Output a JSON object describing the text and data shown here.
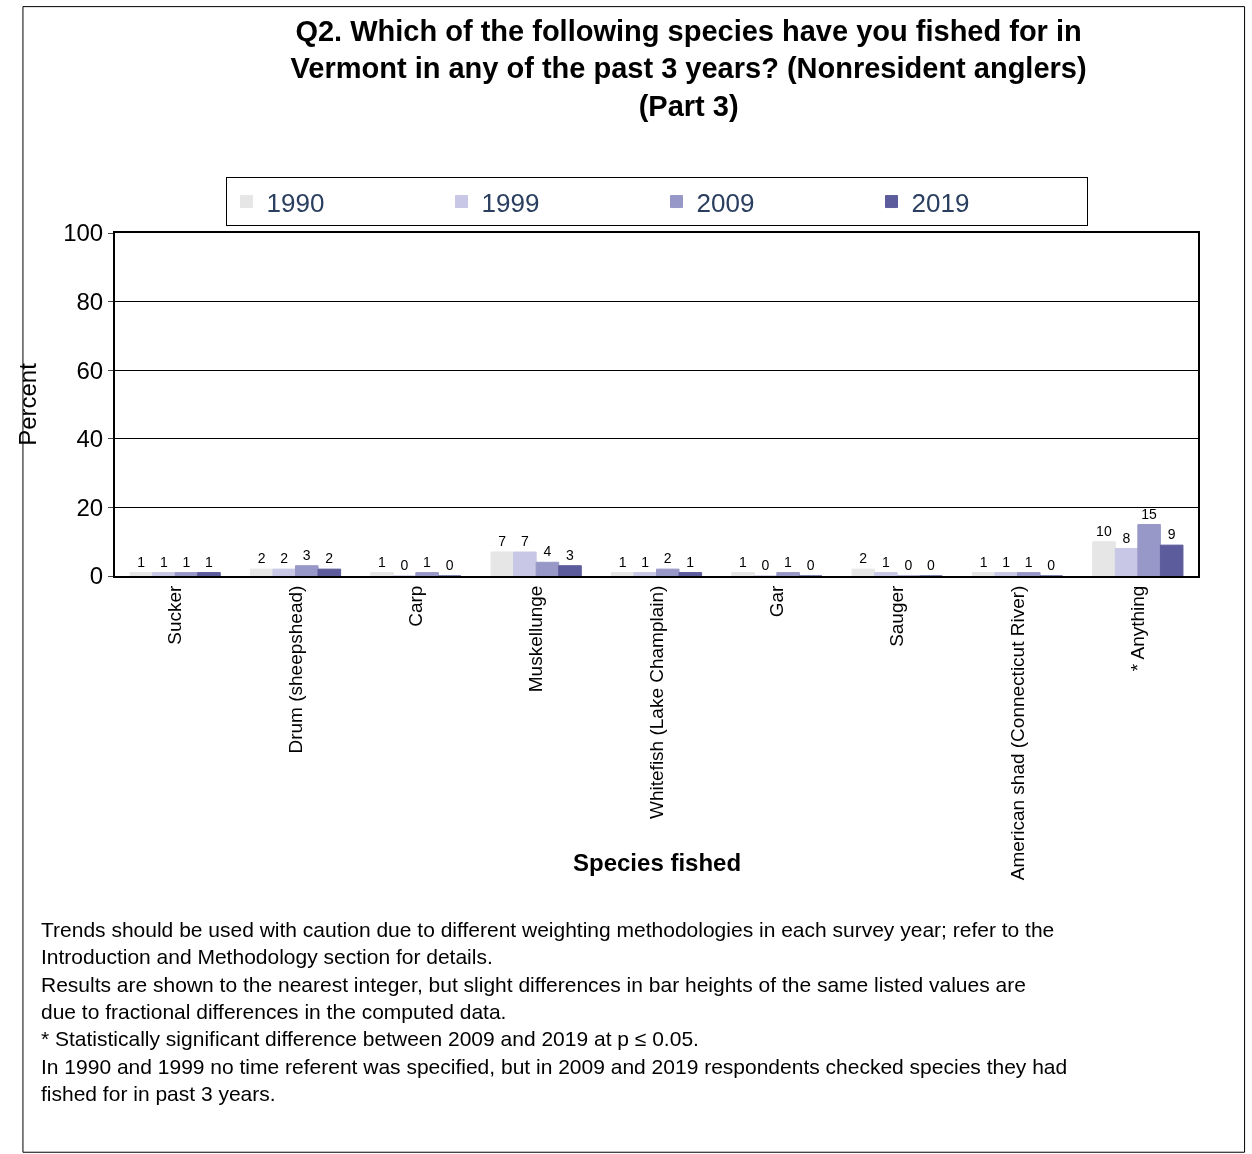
{
  "chart_data": {
    "type": "bar",
    "title": "Q2. Which of the following species have you fished for in Vermont in any of the past 3 years? (Nonresident anglers) (Part 3)",
    "xlabel": "Species fished",
    "ylabel": "Percent",
    "categories": [
      "Sucker",
      "Drum (sheepshead)",
      "Carp",
      "Muskellunge",
      "Whitefish (Lake Champlain)",
      "Gar",
      "Sauger",
      "American shad (Connecticut River)",
      "* Anything"
    ],
    "series": [
      {
        "name": "1990",
        "color": "#e6e6e6",
        "values": [
          1,
          2,
          1,
          7,
          1,
          1,
          2,
          1,
          10
        ]
      },
      {
        "name": "1999",
        "color": "#c8c8e6",
        "values": [
          1,
          2,
          0,
          7,
          1,
          0,
          1,
          1,
          8
        ]
      },
      {
        "name": "2009",
        "color": "#9898c8",
        "values": [
          1,
          3,
          1,
          4,
          2,
          1,
          0,
          1,
          15
        ]
      },
      {
        "name": "2019",
        "color": "#5c5c9c",
        "values": [
          1,
          2,
          0,
          3,
          1,
          0,
          0,
          0,
          9
        ]
      }
    ],
    "ylim": [
      0,
      100
    ],
    "yticks": [
      0,
      20,
      40,
      60,
      80,
      100
    ],
    "grid": "y",
    "legend": "top",
    "data_labels": true,
    "annotations": [
      "Trends should be used with caution due to different weighting methodologies in each survey year; refer to the Introduction and Methodology section for details.",
      "Results are shown to the nearest integer, but slight differences in bar heights of the same listed values are due to fractional differences in the computed data.",
      "* Statistically significant difference between 2009 and 2019 at p ≤ 0.05.",
      "In 1990 and 1999 no time referent was specified, but in 2009 and 2019 respondents checked species they had fished for in past 3 years."
    ]
  }
}
